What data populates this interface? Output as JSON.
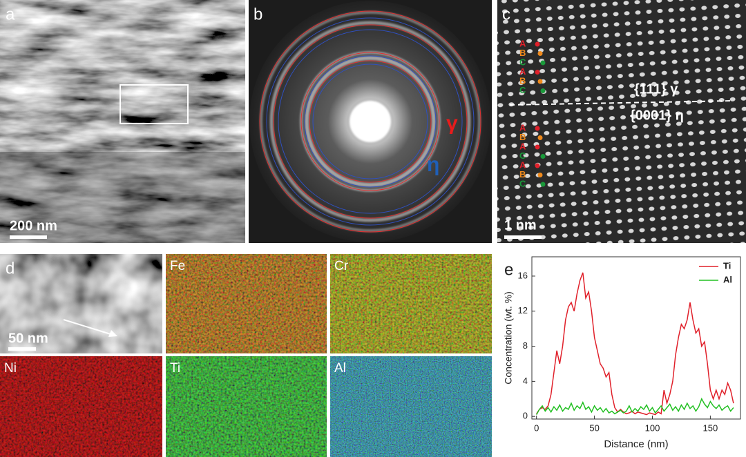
{
  "panels": {
    "a": {
      "label": "a",
      "scale_bar": "200 nm"
    },
    "b": {
      "label": "b",
      "ring_labels": [
        "γ",
        "η"
      ]
    },
    "c": {
      "label": "c",
      "stacking_top": [
        "A",
        "B",
        "C",
        "A",
        "B",
        "C"
      ],
      "stacking_bottom": [
        "A",
        "B",
        "A",
        "C",
        "A",
        "B",
        "C"
      ],
      "plane_top": "{111} γ",
      "plane_bottom": "{0001} η",
      "scale_bar": "1 nm"
    },
    "d": {
      "label": "d",
      "scale_bar": "50 nm",
      "maps": [
        "Fe",
        "Cr",
        "Ni",
        "Ti",
        "Al"
      ]
    }
  },
  "chart_data": {
    "type": "line",
    "label": "e",
    "x_label": "Distance (nm)",
    "y_label": "Concentration (wt. %)",
    "x": [
      0,
      2.5,
      5,
      7.5,
      10,
      12.5,
      15,
      17.5,
      20,
      22.5,
      25,
      27.5,
      30,
      32.5,
      35,
      37.5,
      40,
      42.5,
      45,
      47.5,
      50,
      52.5,
      55,
      57.5,
      60,
      62.5,
      65,
      67.5,
      70,
      72.5,
      75,
      77.5,
      80,
      82.5,
      85,
      87.5,
      90,
      92.5,
      95,
      97.5,
      100,
      102.5,
      105,
      107.5,
      110,
      112.5,
      115,
      117.5,
      120,
      122.5,
      125,
      127.5,
      130,
      132.5,
      135,
      137.5,
      140,
      142.5,
      145,
      147.5,
      150,
      152.5,
      155,
      157.5,
      160,
      162.5,
      165,
      167.5,
      170
    ],
    "series": [
      {
        "name": "Ti",
        "color": "#e0202a",
        "values": [
          0.3,
          0.8,
          1.0,
          0.8,
          1.2,
          2.5,
          5,
          7.5,
          6,
          8,
          11,
          12.5,
          13,
          12,
          14,
          15.5,
          16.4,
          13.5,
          14.2,
          12,
          9,
          7.5,
          6,
          5.5,
          4.5,
          5,
          2.5,
          1,
          0.5,
          0.8,
          0.5,
          0.3,
          0.4,
          0.6,
          0.3,
          0.5,
          0.4,
          0.3,
          0.2,
          0.4,
          0.3,
          0.2,
          0.5,
          0.3,
          3,
          1.5,
          2.5,
          4,
          7,
          9,
          10.5,
          10,
          11,
          13,
          11,
          9.5,
          10,
          8,
          8.5,
          6,
          3,
          2,
          3,
          2,
          3,
          2.5,
          3.8,
          3,
          1.5
        ]
      },
      {
        "name": "Al",
        "color": "#22c022",
        "values": [
          0.2,
          0.8,
          1.2,
          0.6,
          1.0,
          0.5,
          1.1,
          0.7,
          1.3,
          0.6,
          1.0,
          0.8,
          1.5,
          0.7,
          1.2,
          0.9,
          1.6,
          0.8,
          1.1,
          0.5,
          1.2,
          0.7,
          1.0,
          0.5,
          0.9,
          0.4,
          0.6,
          0.3,
          0.5,
          0.7,
          0.4,
          0.6,
          1.2,
          0.5,
          0.9,
          0.6,
          1.1,
          0.8,
          1.3,
          0.6,
          1.0,
          0.4,
          0.8,
          1.2,
          0.6,
          1.0,
          1.4,
          0.7,
          1.1,
          0.6,
          1.3,
          0.8,
          1.5,
          0.9,
          1.2,
          0.6,
          1.1,
          2.0,
          1.4,
          1.0,
          1.7,
          1.2,
          0.9,
          1.3,
          0.7,
          1.0,
          1.2,
          0.6,
          1.0
        ]
      }
    ],
    "xlim": [
      -4,
      176
    ],
    "ylim": [
      -0.3,
      18.2
    ],
    "xticks": [
      0,
      50,
      100,
      150
    ],
    "yticks": [
      0,
      4,
      8,
      12,
      16
    ],
    "legend": "upper right"
  }
}
